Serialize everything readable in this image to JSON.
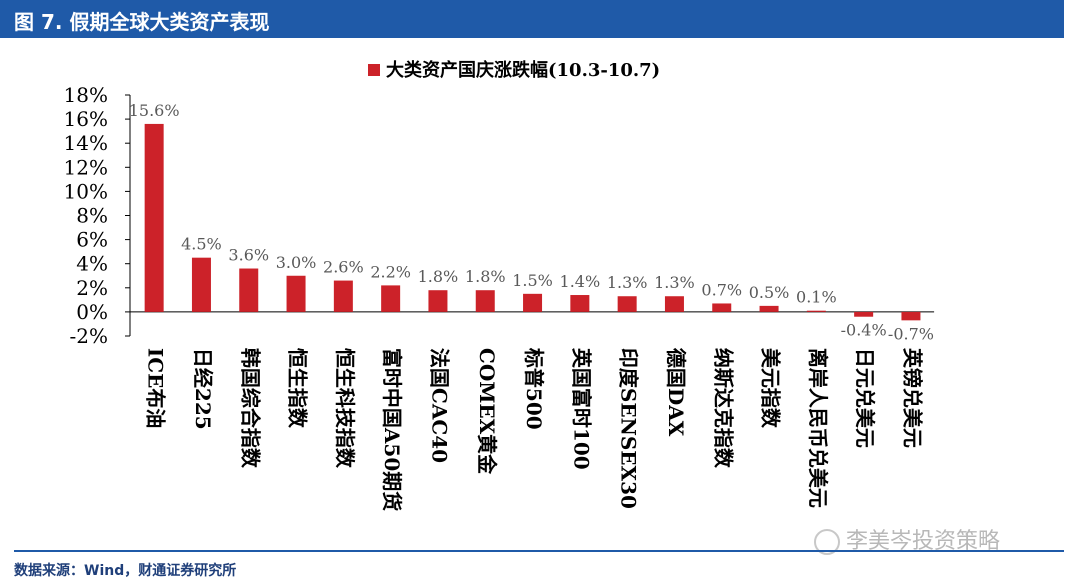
{
  "figure_title": "图 7. 假期全球大类资产表现",
  "source_text": "数据来源：Wind，财通证券研究所",
  "watermark_text": "李美岑投资策略",
  "colors": {
    "header": "#1f5aa8",
    "bar": "#cc2229",
    "text": "#000000"
  },
  "chart_data": {
    "type": "bar",
    "title": "",
    "legend": [
      "大类资产国庆涨跌幅(10.3-10.7)"
    ],
    "legend_position": "top-center",
    "categories": [
      "ICE布油",
      "日经225",
      "韩国综合指数",
      "恒生指数",
      "恒生科技指数",
      "富时中国A50期货",
      "法国CAC40",
      "COMEX黄金",
      "标普500",
      "英国富时100",
      "印度SENSEX30",
      "德国DAX",
      "纳斯达克指数",
      "美元指数",
      "离岸人民币兑美元",
      "日元兑美元",
      "英镑兑美元"
    ],
    "values": [
      15.6,
      4.5,
      3.6,
      3.0,
      2.6,
      2.2,
      1.8,
      1.8,
      1.5,
      1.4,
      1.3,
      1.3,
      0.7,
      0.5,
      0.1,
      -0.4,
      -0.7
    ],
    "data_labels": [
      "15.6%",
      "4.5%",
      "3.6%",
      "3.0%",
      "2.6%",
      "2.2%",
      "1.8%",
      "1.8%",
      "1.5%",
      "1.4%",
      "1.3%",
      "1.3%",
      "0.7%",
      "0.5%",
      "0.1%",
      "-0.4%",
      "-0.7%"
    ],
    "y_ticks": [
      -2,
      0,
      2,
      4,
      6,
      8,
      10,
      12,
      14,
      16,
      18
    ],
    "y_tick_labels": [
      "-2%",
      "0%",
      "2%",
      "4%",
      "6%",
      "8%",
      "10%",
      "12%",
      "14%",
      "16%",
      "18%"
    ],
    "ylim": [
      -2,
      18
    ],
    "xlabel": "",
    "ylabel": "",
    "grid": false
  }
}
